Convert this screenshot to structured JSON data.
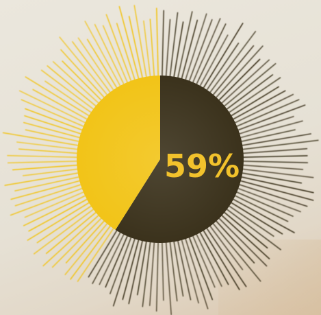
{
  "chart_data": {
    "type": "pie",
    "style": "radial burst gauge",
    "value_percent": 59,
    "label": "59%",
    "colors": {
      "filled": "#3b321c",
      "remaining": "#f2c418",
      "label": "#f2c22c"
    }
  }
}
